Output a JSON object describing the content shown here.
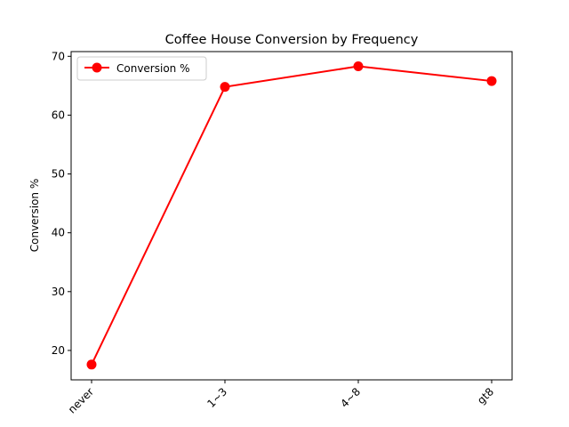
{
  "chart_data": {
    "type": "line",
    "title": "Coffee House Conversion by Frequency",
    "xlabel": "",
    "ylabel": "Conversion %",
    "categories": [
      "never",
      "1~3",
      "4~8",
      "gt8"
    ],
    "series": [
      {
        "name": "Conversion %",
        "values": [
          17.6,
          64.8,
          68.3,
          65.8
        ],
        "color": "#ff0000"
      }
    ],
    "ylim": [
      15,
      70.8
    ],
    "yticks": [
      20,
      30,
      40,
      50,
      60,
      70
    ],
    "grid": false,
    "legend": "upper-left"
  }
}
